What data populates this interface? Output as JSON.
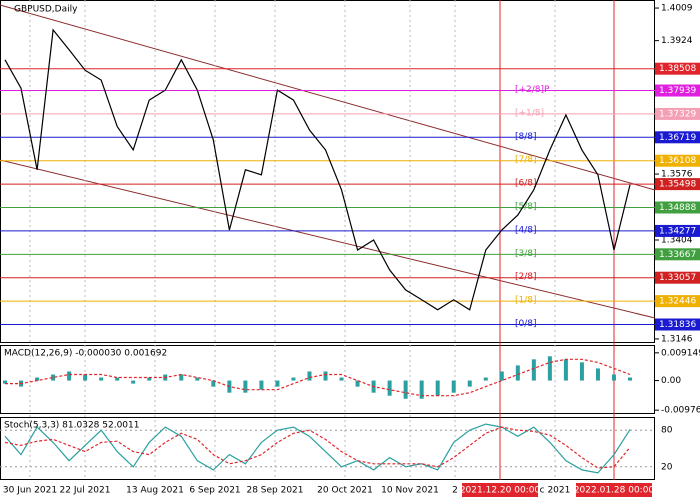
{
  "chart_data": {
    "type": "line",
    "title": "GBPUSD,Daily",
    "ylim": [
      1.3138,
      1.403
    ],
    "yticks": [
      1.4009,
      1.3924,
      1.3576,
      1.3404,
      1.3146
    ],
    "series": [
      {
        "color": "#000000",
        "values": [
          1.3874,
          1.38,
          1.3587,
          1.3952,
          1.39,
          1.3847,
          1.3821,
          1.37,
          1.3639,
          1.3769,
          1.3795,
          1.3874,
          1.3795,
          1.3665,
          1.343,
          1.3587,
          1.3574,
          1.3795,
          1.3769,
          1.3691,
          1.3639,
          1.3535,
          1.3378,
          1.3404,
          1.3326,
          1.3274,
          1.3248,
          1.3222,
          1.3248,
          1.3222,
          1.3378,
          1.343,
          1.3469,
          1.3535,
          1.3639,
          1.373,
          1.3639,
          1.3574,
          1.3378,
          1.3548
        ]
      }
    ],
    "levels": [
      {
        "value": 1.38508,
        "color": "#e0262c"
      },
      {
        "value": 1.37939,
        "color": "#e020e0",
        "tag": "[+2/8]P"
      },
      {
        "value": 1.37329,
        "color": "#f4a0b4",
        "tag": "[+1/8]"
      },
      {
        "value": 1.36719,
        "color": "#1a1ad0",
        "tag": "[8/8]"
      },
      {
        "value": 1.36108,
        "color": "#f0b000",
        "tag": "[7/8]"
      },
      {
        "value": 1.35498,
        "color": "#d02020",
        "tag": "[6/8]"
      },
      {
        "value": 1.34888,
        "color": "#40a040",
        "tag": "[5/8]"
      },
      {
        "value": 1.34277,
        "color": "#1a1ad0",
        "tag": "[4/8]"
      },
      {
        "value": 1.33667,
        "color": "#40a040",
        "tag": "[3/8]"
      },
      {
        "value": 1.33057,
        "color": "#d02020",
        "tag": "[2/8]"
      },
      {
        "value": 1.32446,
        "color": "#f0b000",
        "tag": "[1/8]"
      },
      {
        "value": 1.31836,
        "color": "#1a1ad0",
        "tag": "[0/8]"
      }
    ],
    "x_labels": [
      "30 Jun 2021",
      "22 Jul 2021",
      "13 Aug 2021",
      "6 Sep 2021",
      "28 Sep 2021",
      "20 Oct 2021",
      "10 Nov 2021",
      "2",
      "c 2021"
    ],
    "event_lines": [
      "2021.12.20 00:00",
      "2022.01.28 00:00"
    ],
    "event_color": "#e0262c",
    "macd": {
      "title": "MACD(12,26,9) -0.000030 0.001692",
      "ylim": [
        -0.0107,
        0.0114
      ],
      "yticks": [
        0.009149,
        {
          "value": 0,
          "label": "0.00"
        },
        -0.009762
      ],
      "histogram": {
        "color": "#2aa0a0",
        "values": [
          -0.001,
          -0.002,
          0.001,
          0.002,
          0.003,
          0.002,
          0.001,
          0.001,
          -0.001,
          0.001,
          0.002,
          0.002,
          0.001,
          -0.002,
          -0.004,
          -0.004,
          -0.003,
          -0.002,
          0.001,
          0.003,
          0.003,
          0.001,
          -0.002,
          -0.004,
          -0.005,
          -0.006,
          -0.006,
          -0.005,
          -0.004,
          -0.002,
          0.001,
          0.003,
          0.005,
          0.007,
          0.008,
          0.007,
          0.006,
          0.004,
          0.002,
          0.001
        ]
      },
      "signal": {
        "color": "#e0262c",
        "values": [
          -0.001,
          -0.001,
          0,
          0.001,
          0.002,
          0.002,
          0.002,
          0.001,
          0.001,
          0.001,
          0.001,
          0.002,
          0.001,
          0,
          -0.002,
          -0.003,
          -0.003,
          -0.003,
          -0.001,
          0.001,
          0.002,
          0.002,
          0,
          -0.002,
          -0.003,
          -0.004,
          -0.005,
          -0.005,
          -0.005,
          -0.004,
          -0.002,
          0,
          0.002,
          0.004,
          0.006,
          0.007,
          0.007,
          0.006,
          0.004,
          0.002
        ]
      }
    },
    "stoch": {
      "title": "Stoch(5,3,3) 81.0328 52.0011",
      "ylim": [
        0,
        100
      ],
      "yticks": [
        80,
        20
      ],
      "main": {
        "color": "#2aa0a0",
        "values": [
          70,
          40,
          85,
          60,
          30,
          55,
          80,
          45,
          20,
          60,
          85,
          70,
          30,
          15,
          40,
          25,
          60,
          80,
          85,
          70,
          45,
          20,
          30,
          15,
          35,
          20,
          25,
          15,
          60,
          80,
          90,
          85,
          70,
          85,
          60,
          30,
          15,
          10,
          40,
          81
        ]
      },
      "signal": {
        "color": "#e0262c",
        "values": [
          60,
          55,
          62,
          65,
          55,
          45,
          60,
          62,
          45,
          40,
          60,
          75,
          65,
          40,
          25,
          30,
          40,
          60,
          75,
          80,
          65,
          45,
          30,
          25,
          25,
          25,
          25,
          20,
          35,
          55,
          75,
          85,
          80,
          78,
          72,
          55,
          35,
          18,
          20,
          52
        ]
      }
    }
  }
}
